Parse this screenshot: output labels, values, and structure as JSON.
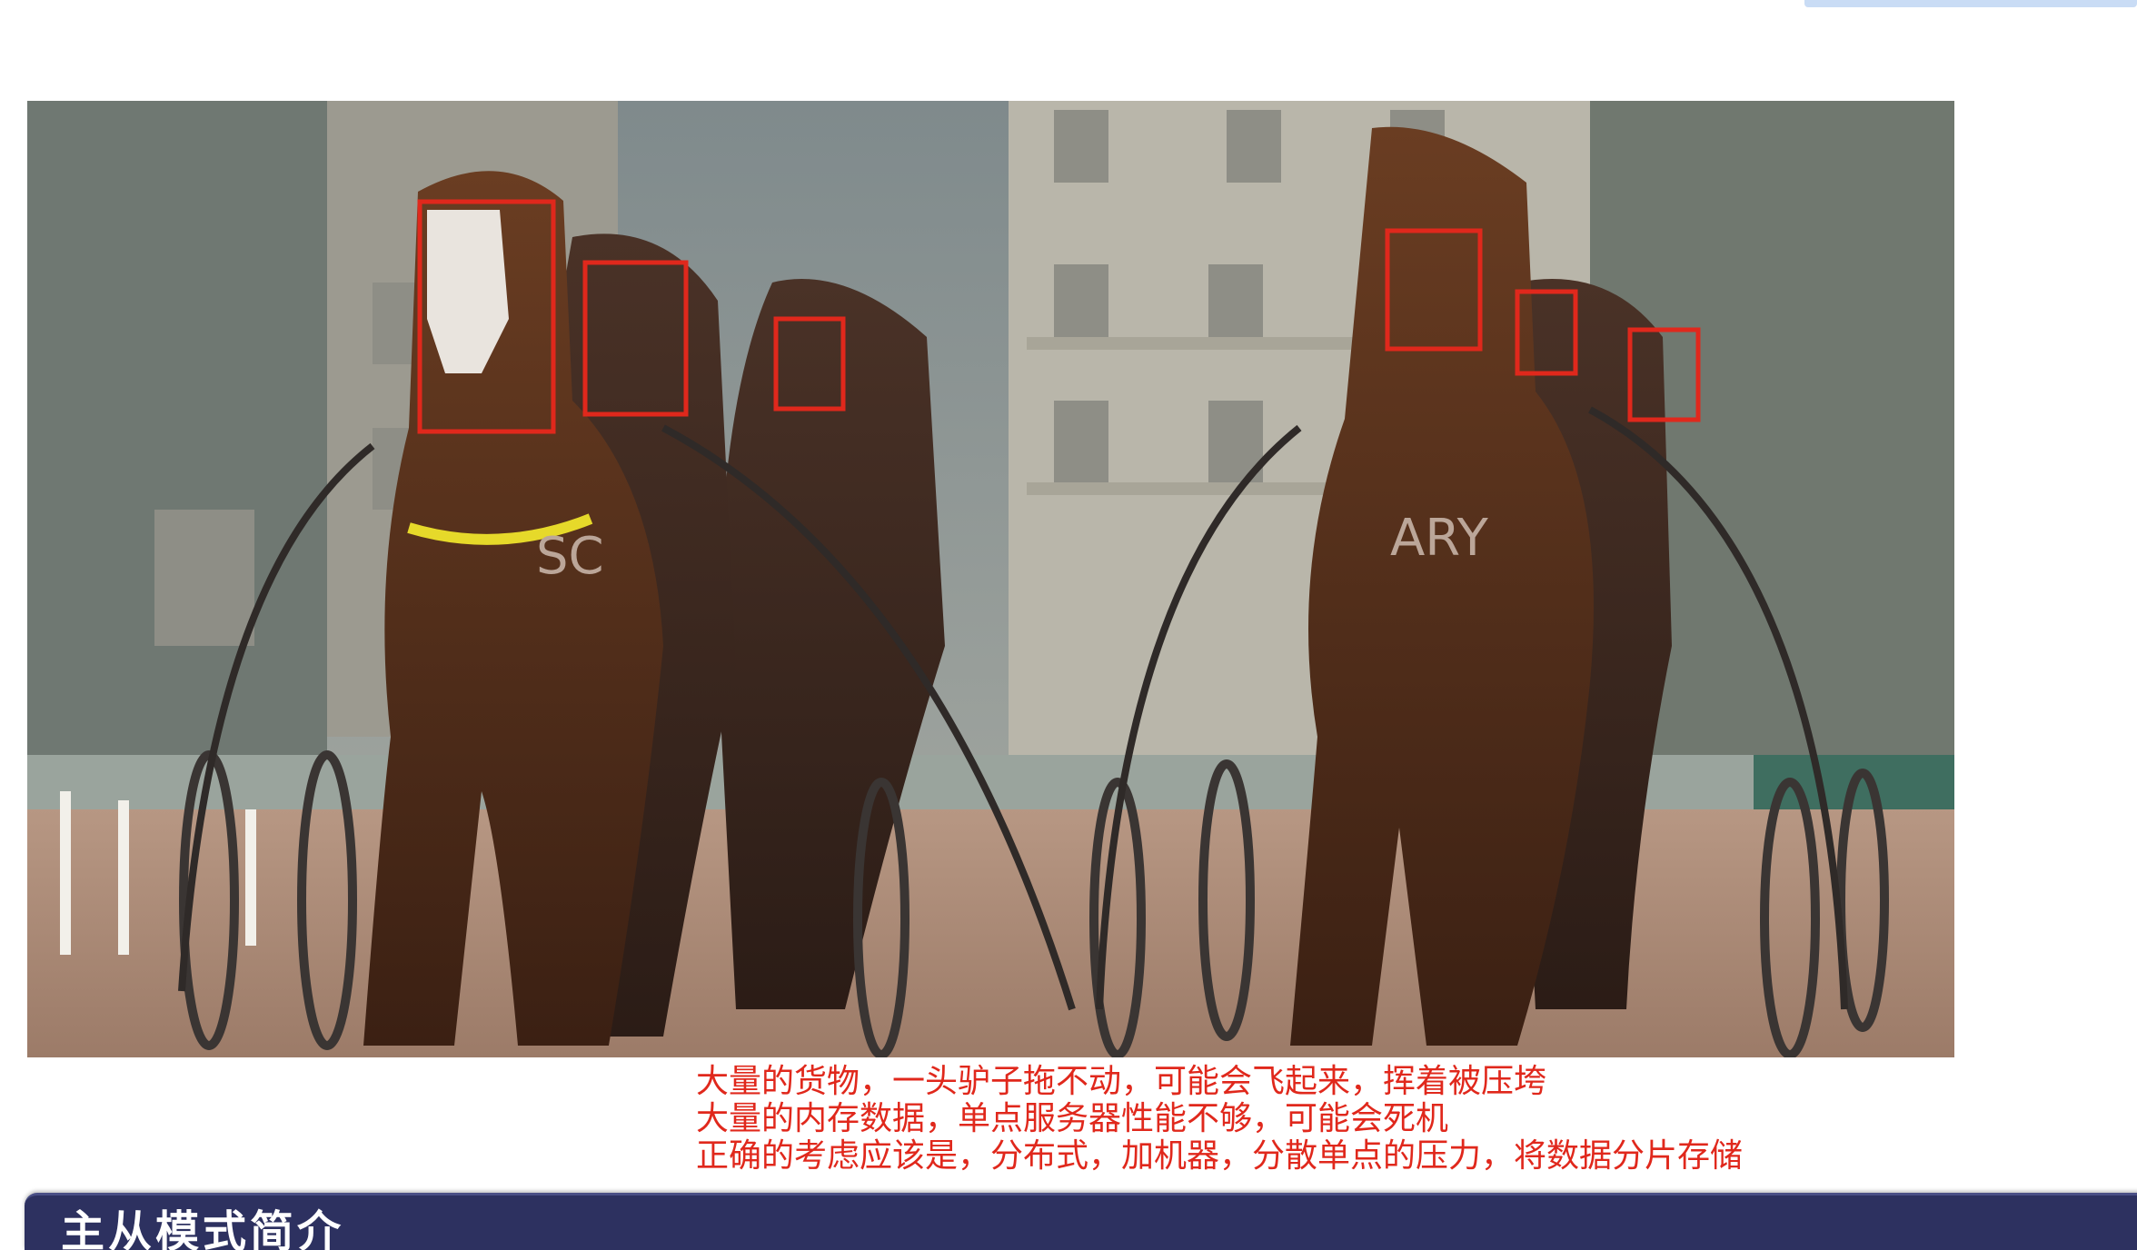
{
  "photo": {
    "subject": "harness racing horses",
    "annotation_color": "#e0281c",
    "saddle_cloth_text": [
      "SC",
      "ARY"
    ]
  },
  "caption": {
    "lines": [
      "大量的货物，一头驴子拖不动，可能会飞起来，挥着被压垮",
      "大量的内存数据，单点服务器性能不够，可能会死机",
      "正确的考虑应该是，分布式，加机器，分散单点的压力，将数据分片存储"
    ]
  },
  "footer": {
    "title": "主从模式简介",
    "bar_color": "#2d3160"
  }
}
